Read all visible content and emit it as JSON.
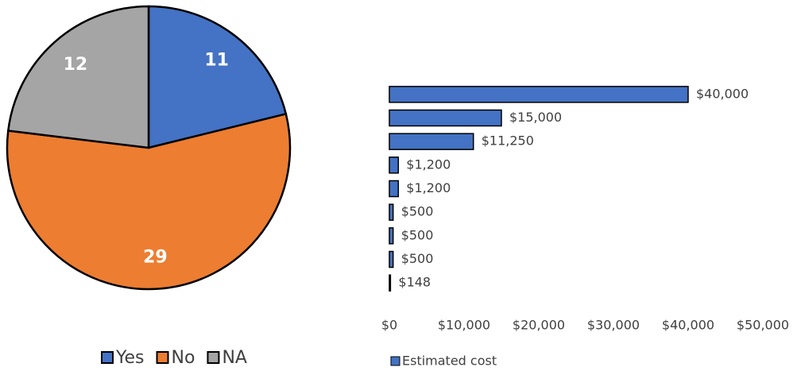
{
  "chart_data": [
    {
      "type": "pie",
      "categories": [
        "Yes",
        "No",
        "NA"
      ],
      "values": [
        11,
        29,
        12
      ],
      "colors": [
        "#4472c4",
        "#ed7d31",
        "#a5a5a5"
      ],
      "legend": "bottom"
    },
    {
      "type": "bar",
      "orientation": "horizontal",
      "categories": [
        null,
        null,
        null,
        null,
        null,
        null,
        null,
        null,
        null
      ],
      "series": [
        {
          "name": "Estimated cost",
          "color": "#4472c4",
          "values": [
            40000,
            15000,
            11250,
            1200,
            1200,
            500,
            500,
            500,
            148
          ],
          "value_labels": [
            "$40,000",
            "$15,000",
            "$11,250",
            "$1,200",
            "$1,200",
            "$500",
            "$500",
            "$500",
            "$148"
          ]
        }
      ],
      "xlim": [
        0,
        50000
      ],
      "xticks": [
        {
          "value": 0,
          "label": "$0"
        },
        {
          "value": 10000,
          "label": "$10,000"
        },
        {
          "value": 20000,
          "label": "$20,000"
        },
        {
          "value": 30000,
          "label": "$30,000"
        },
        {
          "value": 40000,
          "label": "$40,000"
        },
        {
          "value": 50000,
          "label": "$50,000"
        }
      ],
      "grid": false,
      "legend": "bottom"
    }
  ]
}
